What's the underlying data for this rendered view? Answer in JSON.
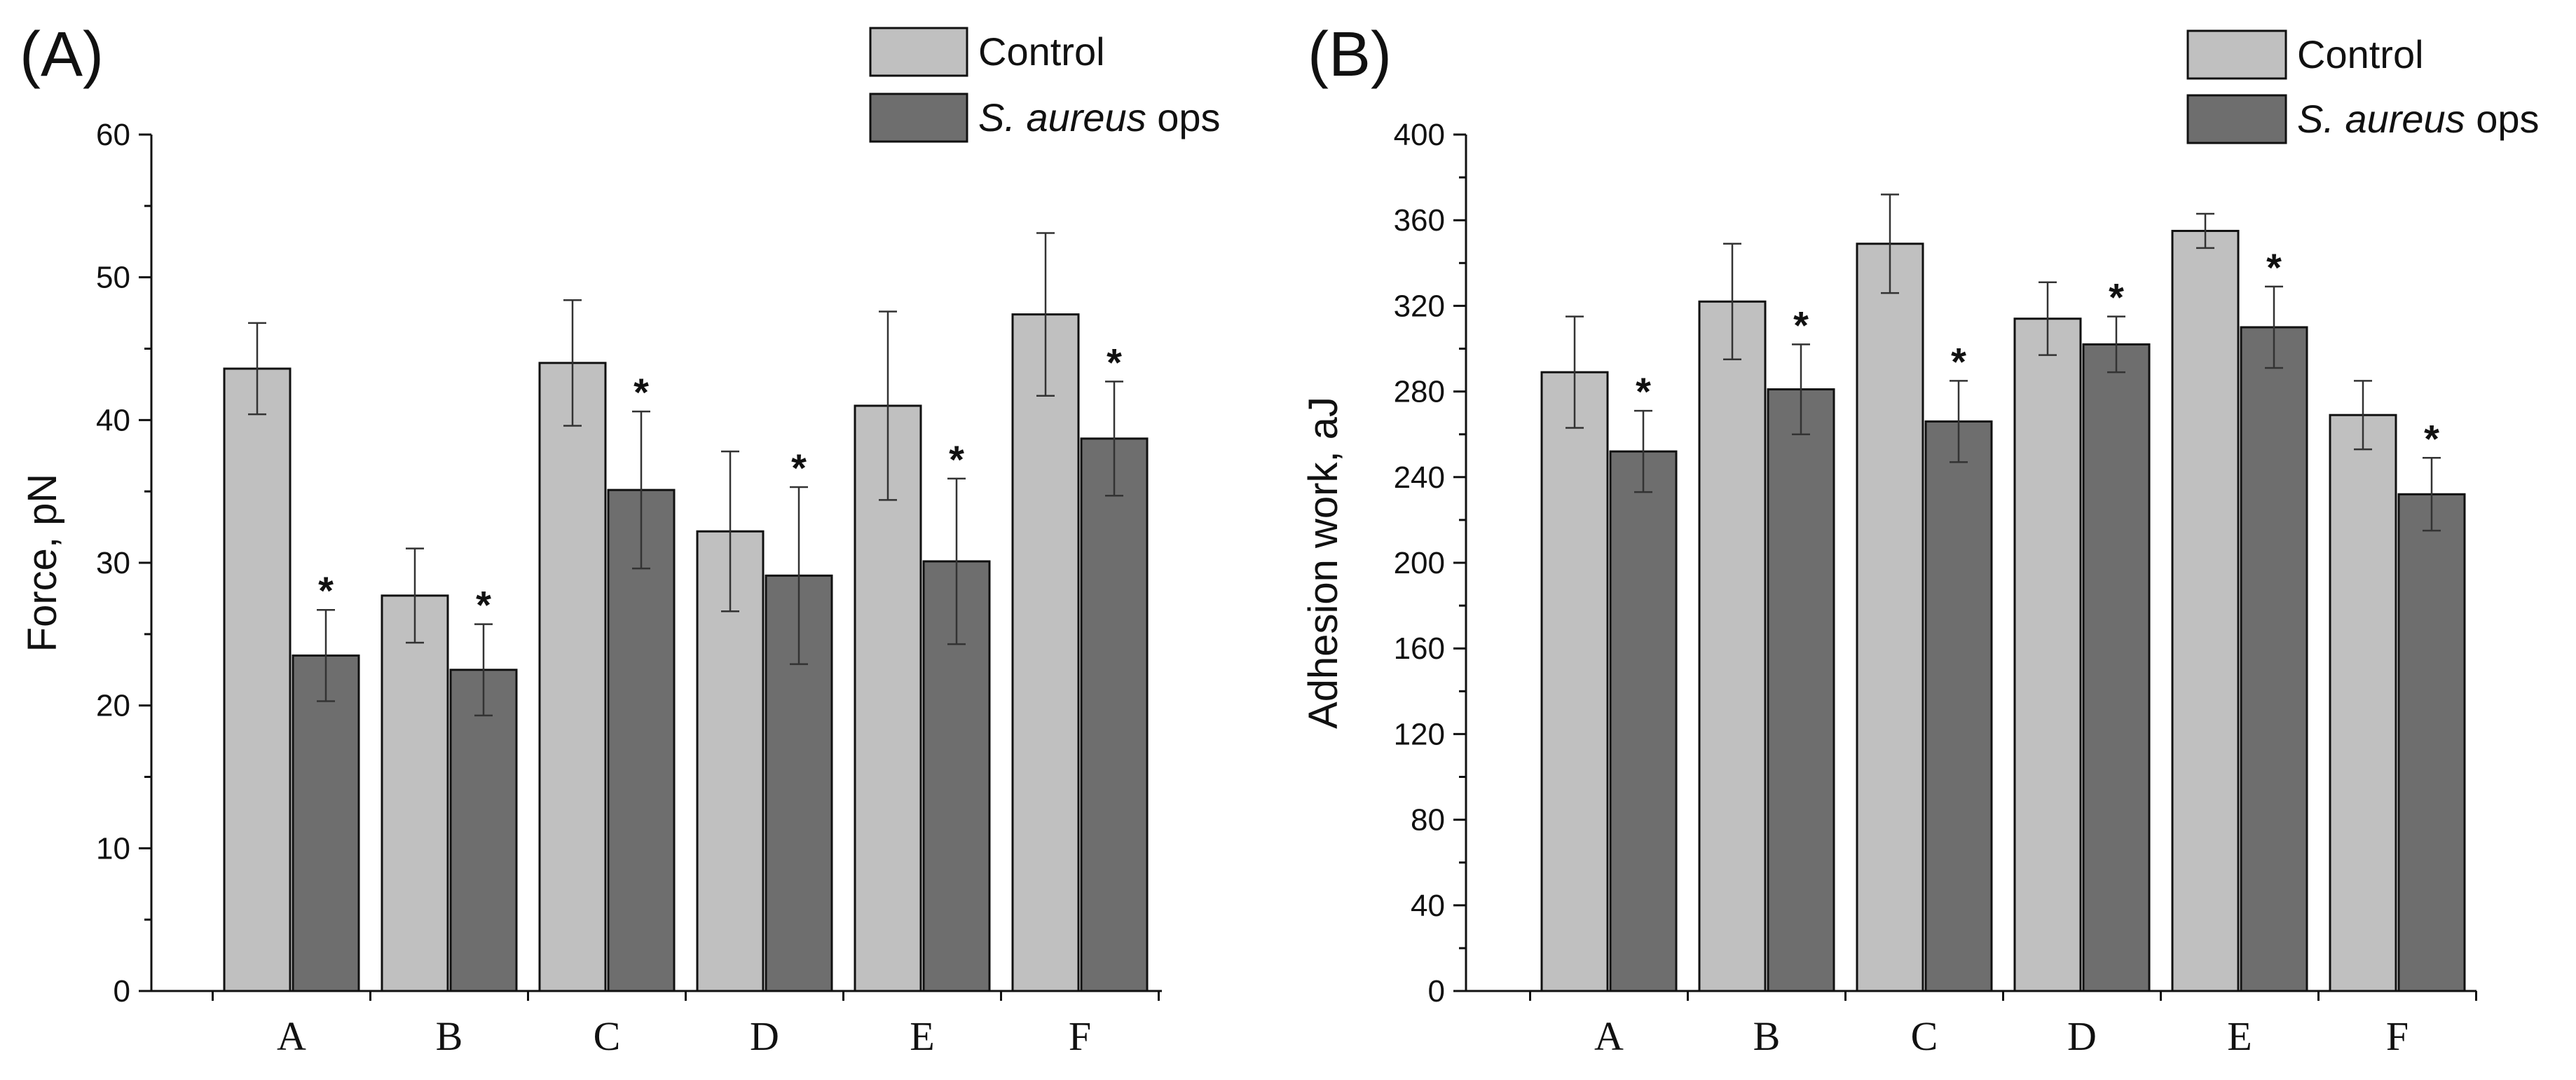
{
  "colors": {
    "control": "#c0c0c0",
    "treated": "#6e6e6e"
  },
  "chart_data": [
    {
      "type": "bar",
      "panel_label": "(A)",
      "title": "",
      "xlabel": "",
      "ylabel": "Force, pN",
      "ylim": [
        0,
        60
      ],
      "yticks": [
        0,
        10,
        20,
        30,
        40,
        50,
        60
      ],
      "grid": false,
      "legend_position": "top-right",
      "categories": [
        "A",
        "B",
        "C",
        "D",
        "E",
        "F"
      ],
      "series": [
        {
          "name": "Control",
          "values": [
            43.6,
            27.7,
            44.0,
            32.2,
            41.0,
            47.4
          ],
          "errors": [
            3.2,
            3.3,
            4.4,
            5.6,
            6.6,
            5.7
          ],
          "significant": [
            false,
            false,
            false,
            false,
            false,
            false
          ]
        },
        {
          "name": "S. aureus ops",
          "values": [
            23.5,
            22.5,
            35.1,
            29.1,
            30.1,
            38.7
          ],
          "errors": [
            3.2,
            3.2,
            5.5,
            6.2,
            5.8,
            4.0
          ],
          "significant": [
            true,
            true,
            true,
            true,
            true,
            true
          ]
        }
      ],
      "significance_marker": "*"
    },
    {
      "type": "bar",
      "panel_label": "(B)",
      "title": "",
      "xlabel": "",
      "ylabel": "Adhesion work, aJ",
      "ylim": [
        0,
        400
      ],
      "yticks": [
        0,
        40,
        80,
        120,
        160,
        200,
        240,
        280,
        320,
        360,
        400
      ],
      "grid": false,
      "legend_position": "top-right",
      "categories": [
        "A",
        "B",
        "C",
        "D",
        "E",
        "F"
      ],
      "series": [
        {
          "name": "Control",
          "values": [
            289,
            322,
            349,
            314,
            355,
            269
          ],
          "errors": [
            26,
            27,
            23,
            17,
            8,
            16
          ],
          "significant": [
            false,
            false,
            false,
            false,
            false,
            false
          ]
        },
        {
          "name": "S. aureus ops",
          "values": [
            252,
            281,
            266,
            302,
            310,
            232
          ],
          "errors": [
            19,
            21,
            19,
            13,
            19,
            17
          ],
          "significant": [
            true,
            true,
            true,
            true,
            true,
            true
          ]
        }
      ],
      "significance_marker": "*"
    }
  ]
}
